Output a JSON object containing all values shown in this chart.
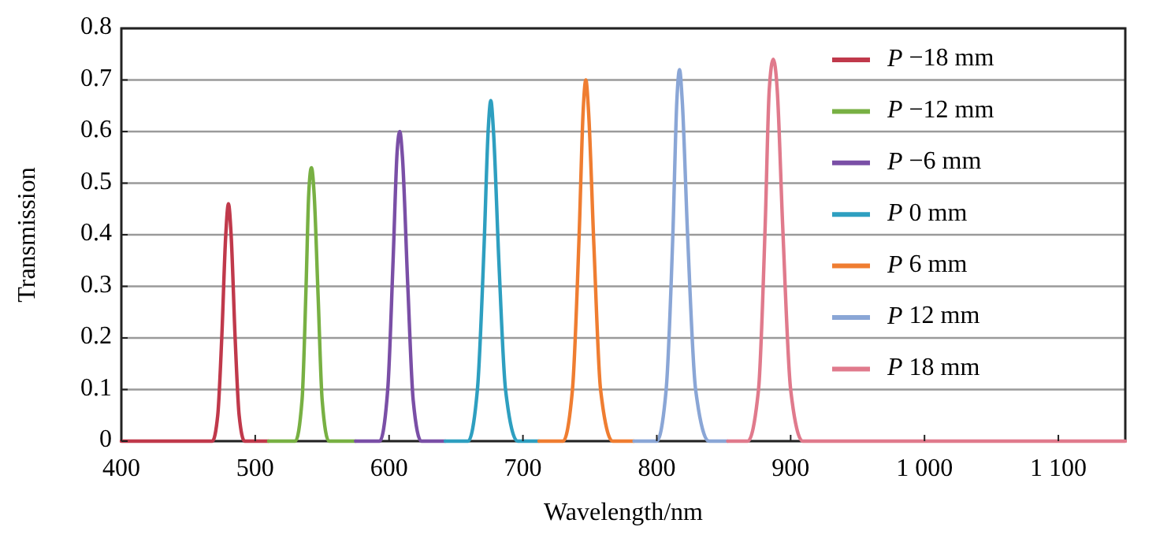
{
  "chart_data": {
    "type": "line",
    "xlabel": "Wavelength/nm",
    "ylabel": "Transmission",
    "xlim": [
      400,
      1150
    ],
    "xticks": [
      400,
      500,
      600,
      700,
      800,
      900,
      {
        "value": 1000,
        "label": "1 000"
      },
      {
        "value": 1100,
        "label": "1 100"
      }
    ],
    "ylim": [
      0,
      0.8
    ],
    "yticks": [
      0,
      0.1,
      0.2,
      0.3,
      0.4,
      0.5,
      0.6,
      0.7,
      0.8
    ],
    "grid": "y",
    "legend": "top right",
    "marker": "none",
    "line_style": "solid",
    "series": [
      {
        "name": "P −18 mm",
        "color": "#c0394b",
        "x": [
          400,
          468,
          472,
          475,
          478,
          480,
          482,
          485,
          488,
          492,
          510
        ],
        "values": [
          0,
          0,
          0.05,
          0.2,
          0.4,
          0.46,
          0.4,
          0.2,
          0.05,
          0,
          0
        ]
      },
      {
        "name": "P −12 mm",
        "color": "#78b043",
        "x": [
          510,
          530,
          535,
          538,
          540,
          542,
          544,
          547,
          550,
          555,
          575
        ],
        "values": [
          0,
          0,
          0.08,
          0.3,
          0.48,
          0.53,
          0.48,
          0.28,
          0.08,
          0,
          0
        ]
      },
      {
        "name": "P −6 mm",
        "color": "#7a4fa6",
        "x": [
          575,
          593,
          599,
          603,
          606,
          608,
          610,
          614,
          618,
          624,
          642
        ],
        "values": [
          0,
          0,
          0.1,
          0.35,
          0.56,
          0.6,
          0.55,
          0.3,
          0.08,
          0,
          0
        ]
      },
      {
        "name": "P 0 mm",
        "color": "#2e9fc0",
        "x": [
          642,
          659,
          666,
          671,
          674,
          676,
          678,
          682,
          687,
          696,
          712
        ],
        "values": [
          0,
          0,
          0.1,
          0.38,
          0.6,
          0.66,
          0.6,
          0.35,
          0.1,
          0,
          0
        ]
      },
      {
        "name": "P 6 mm",
        "color": "#ef7d31",
        "x": [
          712,
          730,
          737,
          742,
          745,
          747,
          749,
          753,
          758,
          767,
          783
        ],
        "values": [
          0,
          0,
          0.1,
          0.4,
          0.64,
          0.7,
          0.64,
          0.38,
          0.1,
          0,
          0
        ]
      },
      {
        "name": "P 12 mm",
        "color": "#8aa6d6",
        "x": [
          783,
          800,
          807,
          812,
          815,
          817,
          819,
          823,
          829,
          839,
          853
        ],
        "values": [
          0,
          0,
          0.1,
          0.4,
          0.66,
          0.72,
          0.66,
          0.4,
          0.1,
          0,
          0
        ]
      },
      {
        "name": "P 18 mm",
        "color": "#e07a8c",
        "x": [
          853,
          868,
          876,
          881,
          884,
          887,
          890,
          894,
          900,
          909,
          1150
        ],
        "values": [
          0,
          0,
          0.1,
          0.42,
          0.68,
          0.74,
          0.68,
          0.42,
          0.1,
          0,
          0
        ]
      }
    ]
  }
}
